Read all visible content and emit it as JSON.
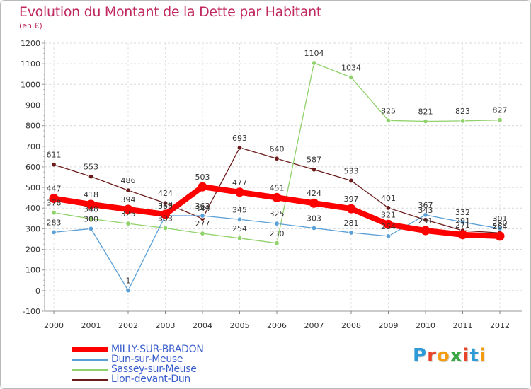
{
  "chart_data": {
    "type": "line",
    "title": "Evolution du Montant de la Dette par Habitant",
    "subtitle": "(en €)",
    "xlabel": "",
    "ylabel": "",
    "categories": [
      "2000",
      "2001",
      "2002",
      "2003",
      "2004",
      "2005",
      "2006",
      "2007",
      "2008",
      "2009",
      "2010",
      "2011",
      "2012"
    ],
    "ylim": [
      -100,
      1200
    ],
    "yticks": [
      -100,
      0,
      100,
      200,
      300,
      400,
      500,
      600,
      700,
      800,
      900,
      1000,
      1100,
      1200
    ],
    "grid": "horizontal dashed",
    "legend_position": "bottom-left",
    "series": [
      {
        "name": "Lion-devant-Dun",
        "color": "#6b1b1b",
        "values": [
          611,
          553,
          486,
          424,
          349,
          693,
          640,
          587,
          533,
          401,
          343,
          291,
          280
        ],
        "labels": [
          "611",
          "553",
          "486",
          "424",
          "349",
          "693",
          "640",
          "587",
          "533",
          "401",
          "343",
          "291",
          "280"
        ]
      },
      {
        "name": "Sassey-sur-Meuse",
        "color": "#8fd16a",
        "values": [
          378,
          348,
          325,
          303,
          277,
          254,
          230,
          1104,
          1034,
          825,
          821,
          823,
          827
        ],
        "labels": [
          "378",
          "348",
          "325",
          "303",
          "277",
          "254",
          "230",
          "1104",
          "1034",
          "825",
          "821",
          "823",
          "827"
        ]
      },
      {
        "name": "Dun-sur-Meuse",
        "color": "#5a9fd6",
        "values": [
          283,
          300,
          1,
          363,
          363,
          345,
          325,
          303,
          281,
          264,
          367,
          332,
          301
        ],
        "labels": [
          "283",
          "300",
          "1",
          "363",
          "363",
          "345",
          "325",
          "303",
          "281",
          "264",
          "367",
          "332",
          "301"
        ]
      },
      {
        "name": "MILLY-SUR-BRADON",
        "color": "#ff0000",
        "values": [
          447,
          418,
          394,
          370,
          503,
          477,
          451,
          424,
          397,
          321,
          291,
          271,
          264
        ],
        "labels": [
          "447",
          "418",
          "394",
          "370",
          "503",
          "477",
          "451",
          "424",
          "397",
          "321",
          "291",
          "271",
          "264"
        ]
      }
    ],
    "legend_order": [
      "MILLY-SUR-BRADON",
      "Dun-sur-Meuse",
      "Sassey-sur-Meuse",
      "Lion-devant-Dun"
    ]
  },
  "legend_colors": {
    "MILLY-SUR-BRADON": "#3a5fcd",
    "Dun-sur-Meuse": "#3a5fcd",
    "Sassey-sur-Meuse": "#3a5fcd",
    "Lion-devant-Dun": "#3a5fcd"
  },
  "logo": {
    "text": "Proxiti",
    "letters": [
      {
        "ch": "P",
        "color": "#2e9bd6"
      },
      {
        "ch": "r",
        "color": "#e8442a"
      },
      {
        "ch": "o",
        "color": "#f39c12"
      },
      {
        "ch": "x",
        "color": "#3aa845"
      },
      {
        "ch": "i",
        "color": "#e8442a"
      },
      {
        "ch": "t",
        "color": "#2e9bd6"
      },
      {
        "ch": "i",
        "color": "#f39c12"
      }
    ]
  }
}
